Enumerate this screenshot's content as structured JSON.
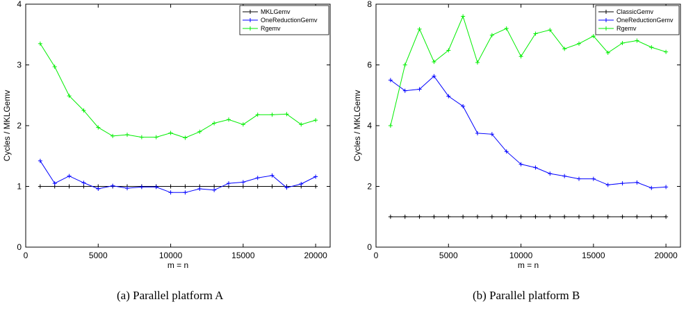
{
  "chart_data": [
    {
      "type": "line",
      "caption": "(a) Parallel platform A",
      "xlabel": "m = n",
      "ylabel": "Cycles / MKLGemv",
      "xlim": [
        0,
        21000
      ],
      "ylim": [
        0,
        4
      ],
      "xticks": [
        0,
        5000,
        10000,
        15000,
        20000
      ],
      "yticks": [
        0,
        1,
        2,
        3,
        4
      ],
      "legend_position": "top-right",
      "x": [
        1000,
        2000,
        3000,
        4000,
        5000,
        6000,
        7000,
        8000,
        9000,
        10000,
        11000,
        12000,
        13000,
        14000,
        15000,
        16000,
        17000,
        18000,
        19000,
        20000
      ],
      "series": [
        {
          "name": "MKLGemv",
          "color": "#000000",
          "values": [
            1,
            1,
            1,
            1,
            1,
            1,
            1,
            1,
            1,
            1,
            1,
            1,
            1,
            1,
            1,
            1,
            1,
            1,
            1,
            1
          ]
        },
        {
          "name": "OneReductionGemv",
          "color": "#0000ff",
          "values": [
            1.42,
            1.05,
            1.17,
            1.06,
            0.96,
            1.01,
            0.97,
            0.99,
            0.99,
            0.9,
            0.9,
            0.96,
            0.94,
            1.05,
            1.07,
            1.14,
            1.18,
            0.98,
            1.04,
            1.16
          ]
        },
        {
          "name": "Rgemv",
          "color": "#00ee00",
          "values": [
            3.35,
            2.97,
            2.49,
            2.25,
            1.97,
            1.83,
            1.85,
            1.81,
            1.81,
            1.88,
            1.8,
            1.9,
            2.04,
            2.1,
            2.02,
            2.18,
            2.18,
            2.19,
            2.02,
            2.09
          ]
        }
      ]
    },
    {
      "type": "line",
      "caption": "(b) Parallel platform B",
      "xlabel": "m = n",
      "ylabel": "Cycles / MKLGemv",
      "xlim": [
        0,
        21000
      ],
      "ylim": [
        0,
        8
      ],
      "xticks": [
        0,
        5000,
        10000,
        15000,
        20000
      ],
      "yticks": [
        0,
        2,
        4,
        6,
        8
      ],
      "legend_position": "top-right",
      "x": [
        1000,
        2000,
        3000,
        4000,
        5000,
        6000,
        7000,
        8000,
        9000,
        10000,
        11000,
        12000,
        13000,
        14000,
        15000,
        16000,
        17000,
        18000,
        19000,
        20000
      ],
      "series": [
        {
          "name": "ClassicGemv",
          "color": "#000000",
          "values": [
            1,
            1,
            1,
            1,
            1,
            1,
            1,
            1,
            1,
            1,
            1,
            1,
            1,
            1,
            1,
            1,
            1,
            1,
            1,
            1
          ]
        },
        {
          "name": "OneReductionGemv",
          "color": "#0000ff",
          "values": [
            5.5,
            5.15,
            5.2,
            5.63,
            4.97,
            4.64,
            3.75,
            3.72,
            3.15,
            2.73,
            2.62,
            2.42,
            2.34,
            2.25,
            2.25,
            2.05,
            2.1,
            2.13,
            1.95,
            1.98
          ]
        },
        {
          "name": "Rgemv",
          "color": "#00ee00",
          "values": [
            4.0,
            6.0,
            7.18,
            6.1,
            6.48,
            7.6,
            6.08,
            6.98,
            7.2,
            6.28,
            7.03,
            7.15,
            6.53,
            6.7,
            6.95,
            6.4,
            6.72,
            6.8,
            6.58,
            6.43
          ]
        }
      ]
    }
  ]
}
